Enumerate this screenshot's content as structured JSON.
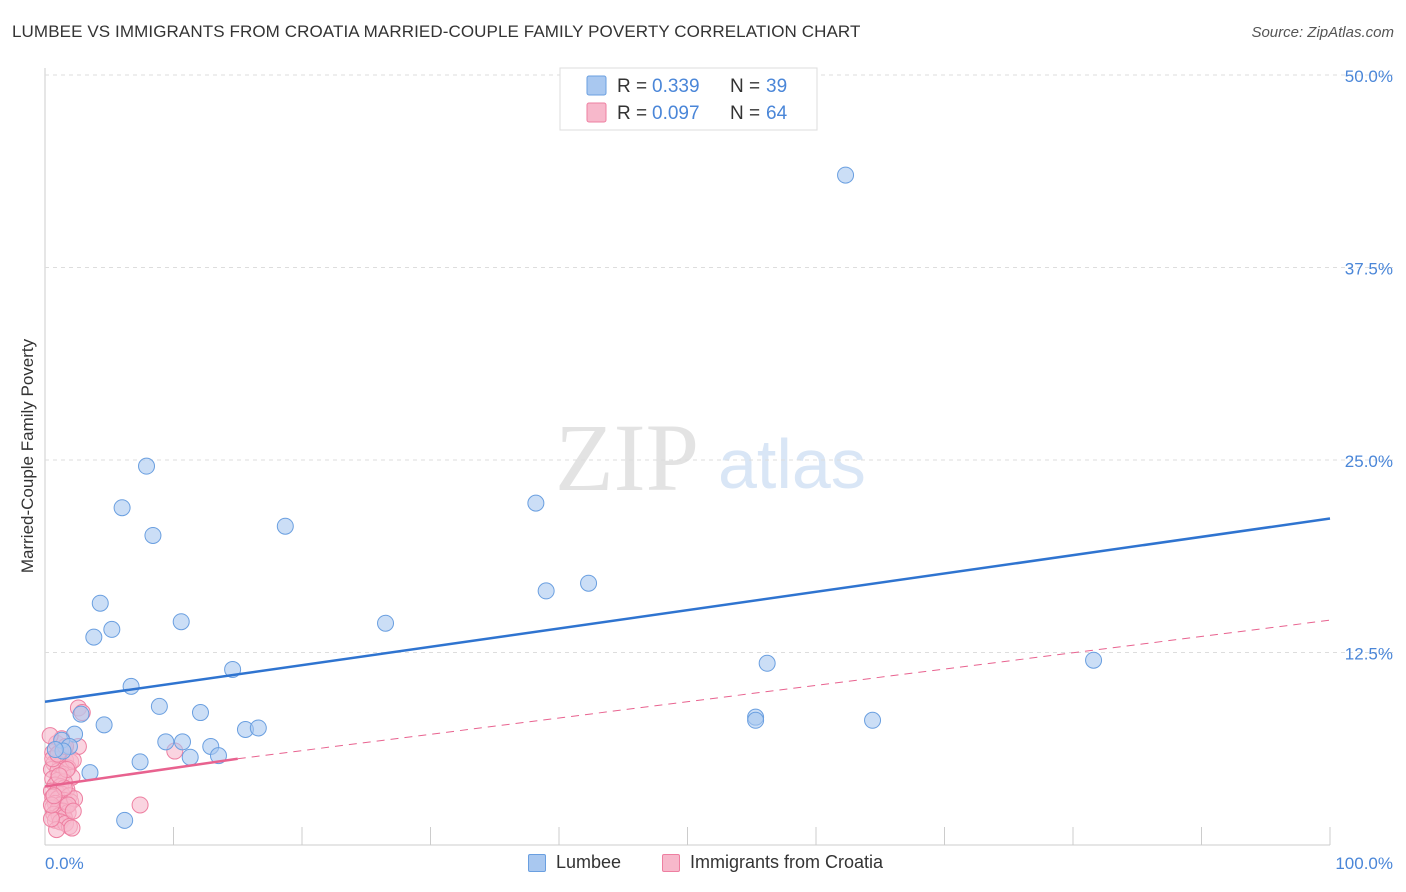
{
  "header": {
    "title": "LUMBEE VS IMMIGRANTS FROM CROATIA MARRIED-COUPLE FAMILY POVERTY CORRELATION CHART",
    "source": "Source: ZipAtlas.com"
  },
  "watermark": {
    "zip": "ZIP",
    "atlas": "atlas"
  },
  "colors": {
    "lumbee_fill": "#a9c8f0",
    "lumbee_stroke": "#6a9fe0",
    "lumbee_line": "#2f74d0",
    "croatia_fill": "#f7b8cb",
    "croatia_stroke": "#ee7fa1",
    "croatia_line": "#e8628f",
    "tick_label": "#4a86d8",
    "grid": "#dddddd"
  },
  "stats_legend": [
    {
      "series": "Lumbee",
      "r_label": "R =",
      "r_value": "0.339",
      "n_label": "N =",
      "n_value": "39"
    },
    {
      "series": "Immigrants from Croatia",
      "r_label": "R =",
      "r_value": "0.097",
      "n_label": "N =",
      "n_value": "64"
    }
  ],
  "chart_data": {
    "type": "scatter",
    "title": "LUMBEE VS IMMIGRANTS FROM CROATIA MARRIED-COUPLE FAMILY POVERTY CORRELATION CHART",
    "xlabel": "",
    "ylabel": "Married-Couple Family Poverty",
    "xlim": [
      0,
      100
    ],
    "ylim": [
      0,
      50
    ],
    "x_tick_labels": [
      "0.0%",
      "100.0%"
    ],
    "y_ticks": [
      12.5,
      25.0,
      37.5,
      50.0
    ],
    "y_tick_labels": [
      "12.5%",
      "25.0%",
      "37.5%",
      "50.0%"
    ],
    "grid": true,
    "legend_position": "bottom",
    "series": [
      {
        "name": "Lumbee",
        "r": 0.339,
        "n": 39,
        "trend": {
          "x": [
            0,
            100
          ],
          "y": [
            9.3,
            21.2
          ],
          "style": "solid"
        },
        "points": [
          [
            62.3,
            43.5
          ],
          [
            7.9,
            24.6
          ],
          [
            6.0,
            21.9
          ],
          [
            8.4,
            20.1
          ],
          [
            18.7,
            20.7
          ],
          [
            38.2,
            22.2
          ],
          [
            39.0,
            16.5
          ],
          [
            42.3,
            17.0
          ],
          [
            4.3,
            15.7
          ],
          [
            3.8,
            13.5
          ],
          [
            5.2,
            14.0
          ],
          [
            10.6,
            14.5
          ],
          [
            26.5,
            14.4
          ],
          [
            14.6,
            11.4
          ],
          [
            6.7,
            10.3
          ],
          [
            8.9,
            9.0
          ],
          [
            12.1,
            8.6
          ],
          [
            2.8,
            8.5
          ],
          [
            4.6,
            7.8
          ],
          [
            15.6,
            7.5
          ],
          [
            16.6,
            7.6
          ],
          [
            2.3,
            7.2
          ],
          [
            1.3,
            6.8
          ],
          [
            1.9,
            6.4
          ],
          [
            9.4,
            6.7
          ],
          [
            10.7,
            6.7
          ],
          [
            11.3,
            5.7
          ],
          [
            12.9,
            6.4
          ],
          [
            13.5,
            5.8
          ],
          [
            7.4,
            5.4
          ],
          [
            1.4,
            6.1
          ],
          [
            3.5,
            4.7
          ],
          [
            6.2,
            1.6
          ],
          [
            56.2,
            11.8
          ],
          [
            55.3,
            8.3
          ],
          [
            55.3,
            8.1
          ],
          [
            64.4,
            8.1
          ],
          [
            81.6,
            12.0
          ],
          [
            0.8,
            6.2
          ]
        ]
      },
      {
        "name": "Immigrants from Croatia",
        "r": 0.097,
        "n": 64,
        "trend": {
          "x": [
            0,
            15
          ],
          "y": [
            3.8,
            5.6
          ],
          "style": "solid",
          "extended": {
            "x": [
              15,
              100
            ],
            "y": [
              5.6,
              14.6
            ],
            "style": "dashed"
          }
        },
        "points": [
          [
            2.6,
            8.9
          ],
          [
            2.9,
            8.6
          ],
          [
            10.1,
            6.1
          ],
          [
            2.6,
            6.4
          ],
          [
            1.5,
            6.3
          ],
          [
            1.2,
            6.1
          ],
          [
            0.6,
            6.0
          ],
          [
            1.0,
            5.8
          ],
          [
            1.6,
            5.5
          ],
          [
            2.0,
            5.4
          ],
          [
            0.7,
            5.3
          ],
          [
            1.2,
            5.2
          ],
          [
            1.8,
            5.0
          ],
          [
            0.5,
            4.9
          ],
          [
            1.0,
            4.8
          ],
          [
            1.4,
            4.6
          ],
          [
            2.1,
            4.4
          ],
          [
            0.6,
            4.3
          ],
          [
            1.0,
            4.2
          ],
          [
            1.5,
            4.1
          ],
          [
            0.8,
            3.9
          ],
          [
            1.2,
            3.8
          ],
          [
            1.7,
            3.6
          ],
          [
            0.5,
            3.5
          ],
          [
            0.9,
            3.4
          ],
          [
            1.3,
            3.3
          ],
          [
            1.9,
            3.2
          ],
          [
            0.6,
            3.1
          ],
          [
            1.0,
            3.0
          ],
          [
            1.5,
            2.9
          ],
          [
            2.0,
            2.8
          ],
          [
            0.8,
            2.7
          ],
          [
            1.2,
            2.6
          ],
          [
            1.6,
            2.5
          ],
          [
            0.6,
            2.4
          ],
          [
            1.0,
            2.3
          ],
          [
            1.4,
            2.2
          ],
          [
            1.8,
            2.1
          ],
          [
            0.7,
            2.0
          ],
          [
            1.1,
            1.9
          ],
          [
            1.5,
            1.8
          ],
          [
            0.8,
            1.6
          ],
          [
            1.2,
            1.5
          ],
          [
            1.6,
            1.4
          ],
          [
            1.9,
            1.2
          ],
          [
            0.9,
            1.0
          ],
          [
            2.1,
            1.1
          ],
          [
            0.5,
            1.7
          ],
          [
            0.6,
            5.6
          ],
          [
            2.2,
            5.5
          ],
          [
            0.9,
            6.6
          ],
          [
            1.3,
            6.9
          ],
          [
            1.7,
            4.9
          ],
          [
            2.3,
            3.0
          ],
          [
            7.4,
            2.6
          ],
          [
            0.4,
            7.1
          ],
          [
            1.0,
            5.9
          ],
          [
            1.5,
            3.7
          ],
          [
            0.5,
            2.6
          ],
          [
            1.8,
            2.6
          ],
          [
            2.2,
            2.2
          ],
          [
            1.1,
            4.5
          ],
          [
            0.7,
            3.2
          ],
          [
            1.6,
            6.4
          ]
        ]
      }
    ]
  }
}
